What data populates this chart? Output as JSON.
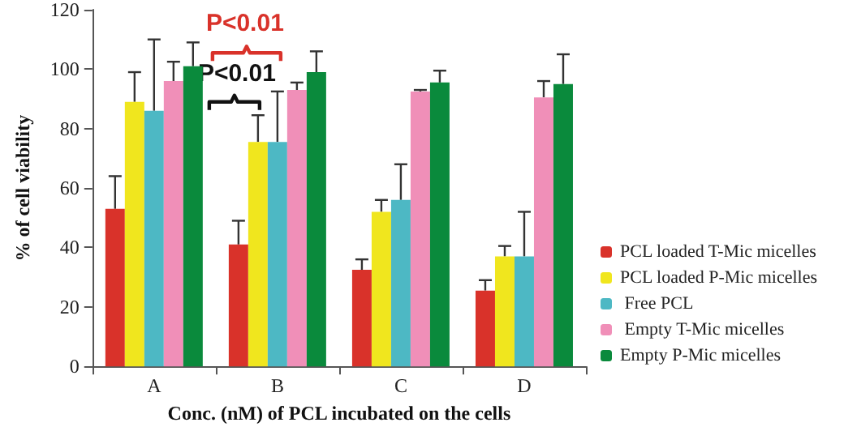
{
  "chart_data": {
    "type": "bar",
    "xlabel": "Conc. (nM) of PCL incubated on the cells",
    "ylabel": "% of cell viability",
    "categories": [
      "A",
      "B",
      "C",
      "D"
    ],
    "series": [
      {
        "name": "PCL loaded T-Mic micelles",
        "color": "#d9322a",
        "values": [
          53,
          41,
          32.5,
          25.5
        ],
        "errors": [
          [
            53,
            64
          ],
          [
            41,
            49
          ],
          [
            32.5,
            36
          ],
          [
            25.5,
            29
          ]
        ]
      },
      {
        "name": "PCL loaded P-Mic micelles",
        "color": "#f0e61e",
        "values": [
          89,
          75.5,
          52,
          37
        ],
        "errors": [
          [
            89,
            99
          ],
          [
            75.5,
            84.5
          ],
          [
            52,
            56
          ],
          [
            37,
            40.5
          ]
        ]
      },
      {
        "name": " Free PCL",
        "color": "#4db8c4",
        "values": [
          86,
          75.5,
          56,
          37
        ],
        "errors": [
          [
            86,
            110
          ],
          [
            75.5,
            92.5
          ],
          [
            56,
            68
          ],
          [
            37,
            52
          ]
        ]
      },
      {
        "name": " Empty T-Mic micelles",
        "color": "#f08fb8",
        "values": [
          96,
          93,
          92.5,
          90.5
        ],
        "errors": [
          [
            96,
            102.5
          ],
          [
            93,
            95.5
          ],
          [
            92.5,
            93
          ],
          [
            90.5,
            96
          ]
        ]
      },
      {
        "name": "Empty P-Mic micelles",
        "color": "#0a8a3c",
        "values": [
          101,
          99,
          95.5,
          95
        ],
        "errors": [
          [
            101,
            109
          ],
          [
            99,
            106
          ],
          [
            95.5,
            99.5
          ],
          [
            95,
            105
          ]
        ]
      }
    ],
    "annotations": [
      "P<0.01",
      "P<0.01"
    ],
    "ylim": [
      0,
      120
    ],
    "yticks": [
      0,
      20,
      40,
      60,
      80,
      100,
      120
    ],
    "grid": false,
    "legend": "right"
  }
}
